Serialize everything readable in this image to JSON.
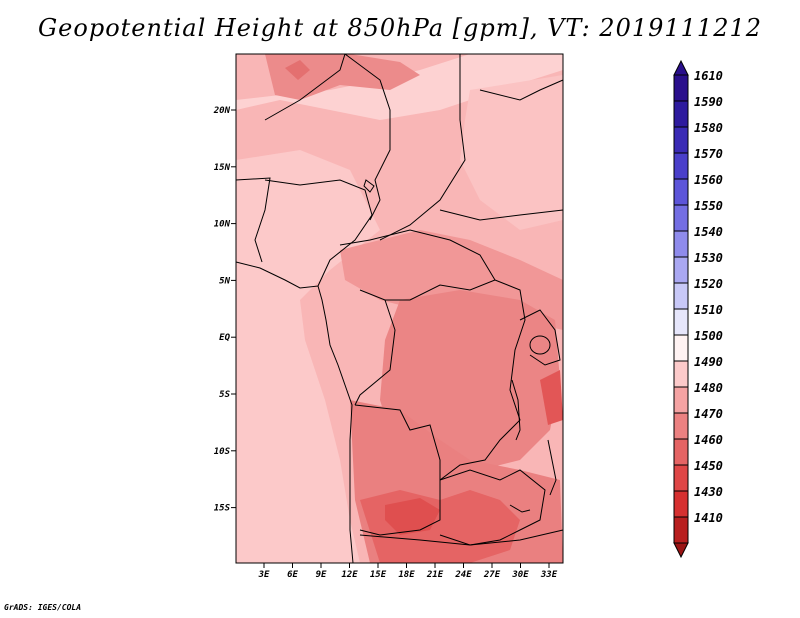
{
  "title": "Geopotential Height at 850hPa [gpm], VT: 2019111212",
  "credit": "GrADS: IGES/COLA",
  "map": {
    "lon_labels": [
      "3E",
      "6E",
      "9E",
      "12E",
      "15E",
      "18E",
      "21E",
      "24E",
      "27E",
      "30E",
      "33E"
    ],
    "lat_labels": [
      "20N",
      "15N",
      "10N",
      "5N",
      "EQ",
      "5S",
      "10S",
      "15S"
    ],
    "lon_range": [
      0,
      35
    ],
    "lat_range": [
      -19,
      24.5
    ],
    "field": "Geopotential height at 850 hPa",
    "units": "gpm"
  },
  "colorbar": {
    "levels": [
      {
        "label": "1610",
        "color": "#2a0f8c"
      },
      {
        "label": "1590",
        "color": "#2e1b9e"
      },
      {
        "label": "1580",
        "color": "#3a2bb5"
      },
      {
        "label": "1570",
        "color": "#4a3fca"
      },
      {
        "label": "1560",
        "color": "#5d55d9"
      },
      {
        "label": "1550",
        "color": "#746ee3"
      },
      {
        "label": "1540",
        "color": "#8f8bec"
      },
      {
        "label": "1530",
        "color": "#aaa8f2"
      },
      {
        "label": "1520",
        "color": "#c8c8f7"
      },
      {
        "label": "1510",
        "color": "#e6e6fb"
      },
      {
        "label": "1500",
        "color": "#fff3f3"
      },
      {
        "label": "1490",
        "color": "#fccaca"
      },
      {
        "label": "1480",
        "color": "#f5a3a3"
      },
      {
        "label": "1470",
        "color": "#ec8181"
      },
      {
        "label": "1460",
        "color": "#e56464"
      },
      {
        "label": "1450",
        "color": "#df4646"
      },
      {
        "label": "1430",
        "color": "#d63030"
      },
      {
        "label": "1410",
        "color": "#b81f1f"
      }
    ],
    "bottom_color": "#9a1414"
  }
}
